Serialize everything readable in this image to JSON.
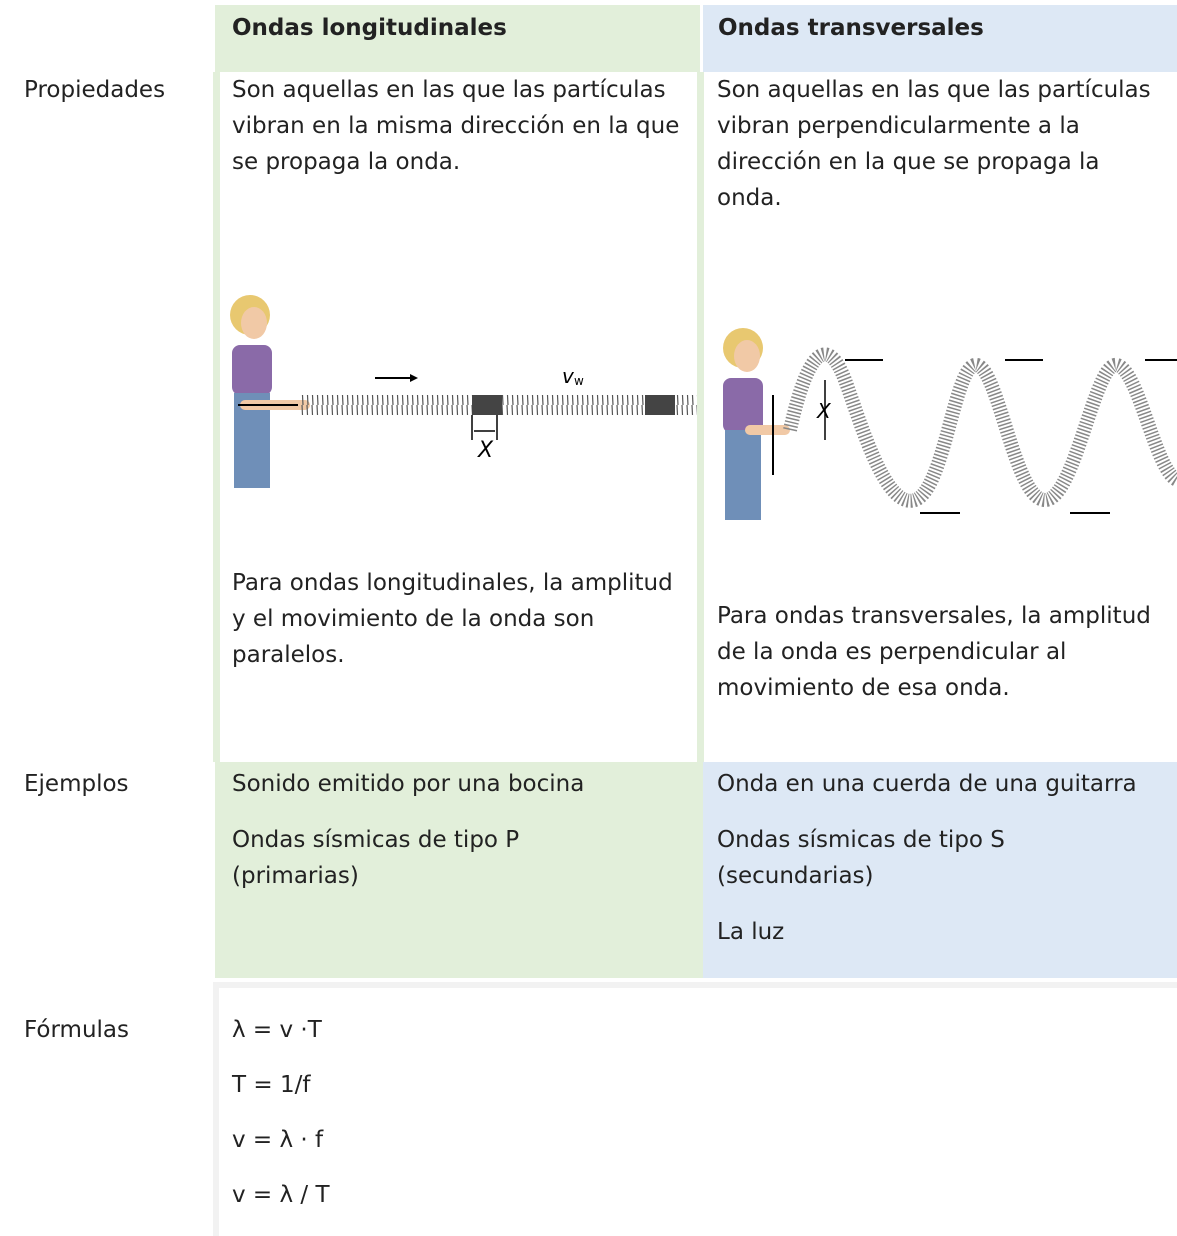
{
  "table": {
    "header": {
      "longitudinal": "Ondas longitudinales",
      "transversal": "Ondas transversales"
    },
    "properties": {
      "label": "Propiedades",
      "longitudinal": {
        "description": "Son aquellas en las que las partículas vibran en la misma dirección en la que se propaga la onda.",
        "figure": {
          "velocity": "v",
          "velocity_subscript": "w",
          "amplitude": "X"
        },
        "caption": "Para ondas longitudinales, la amplitud y el movimiento de la onda son paralelos."
      },
      "transversal": {
        "description": "Son aquellas en las que las partículas vibran perpendicularmente a la dirección en la que se propaga la onda.",
        "figure": {
          "amplitude": "X"
        },
        "caption": "Para ondas transversales, la amplitud de la onda es perpendicular al movimiento de esa onda."
      }
    },
    "examples": {
      "label": "Ejemplos",
      "longitudinal": [
        "Sonido emitido por una bocina",
        "Ondas sísmicas de tipo P (primarias)"
      ],
      "transversal": [
        "Onda en una cuerda de una guitarra",
        "Ondas sísmicas de tipo S (secundarias)",
        "La luz"
      ]
    },
    "formulas": {
      "label": "Fórmulas",
      "items": [
        "λ = v ·T",
        "T = 1/f",
        "v = λ · f",
        "v = λ / T"
      ]
    }
  }
}
